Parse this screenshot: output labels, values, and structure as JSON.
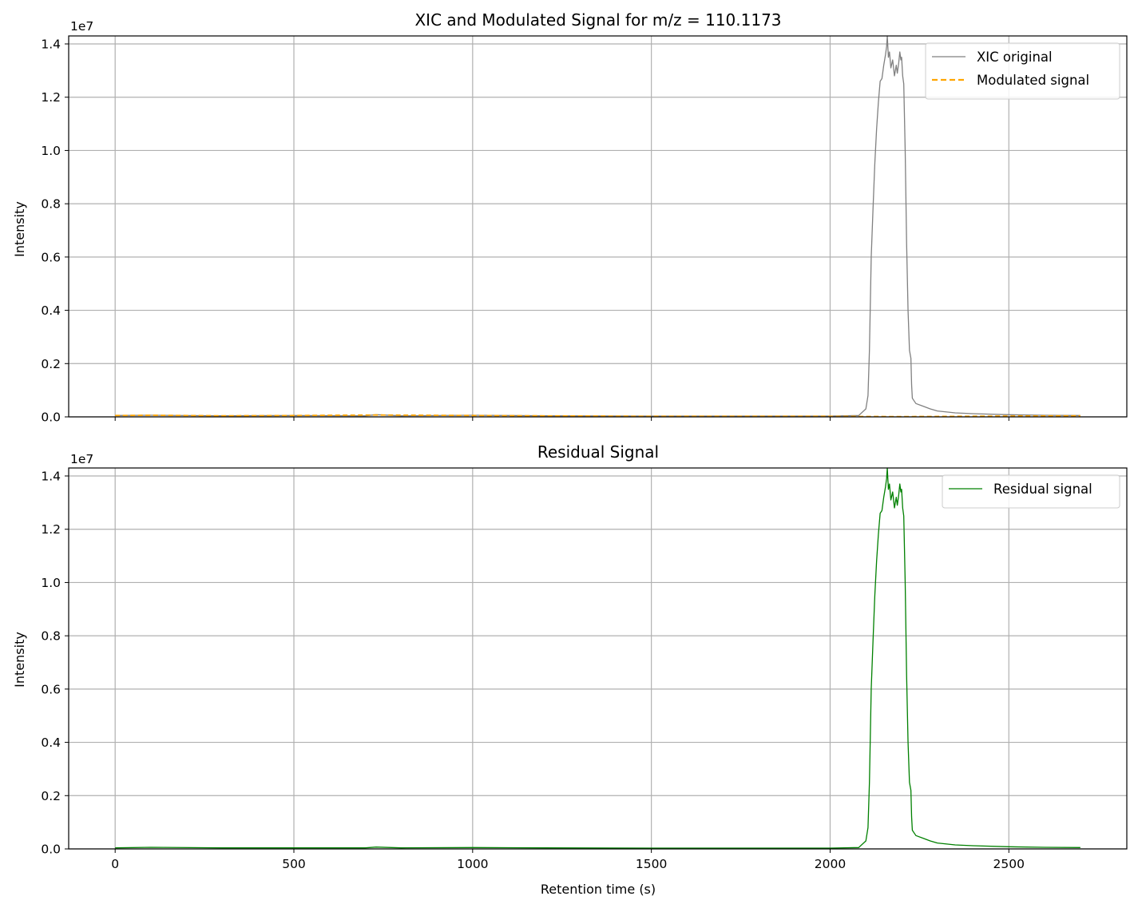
{
  "chart_data": [
    {
      "type": "line",
      "title": "XIC and Modulated Signal for m/z = 110.1173",
      "xlabel": "",
      "ylabel": "Intensity",
      "y_offset_label": "1e7",
      "xlim": [
        -130,
        2830
      ],
      "ylim": [
        0,
        1.43
      ],
      "x_ticks": [
        0,
        500,
        1000,
        1500,
        2000,
        2500
      ],
      "x_tick_labels": [],
      "y_ticks": [
        0.0,
        0.2,
        0.4,
        0.6,
        0.8,
        1.0,
        1.2,
        1.4
      ],
      "y_tick_labels": [
        "0.0",
        "0.2",
        "0.4",
        "0.6",
        "0.8",
        "1.0",
        "1.2",
        "1.4"
      ],
      "grid": true,
      "legend_position": "top-right",
      "series": [
        {
          "name": "XIC original",
          "color": "#808080",
          "style": "solid",
          "x": [
            0,
            100,
            300,
            500,
            700,
            730,
            800,
            1000,
            1200,
            1500,
            1800,
            2000,
            2080,
            2100,
            2106,
            2110,
            2115,
            2120,
            2125,
            2130,
            2135,
            2140,
            2145,
            2150,
            2155,
            2158,
            2160,
            2163,
            2166,
            2170,
            2175,
            2180,
            2185,
            2188,
            2192,
            2195,
            2198,
            2200,
            2203,
            2206,
            2210,
            2214,
            2218,
            2222,
            2226,
            2228,
            2230,
            2240,
            2260,
            2280,
            2300,
            2350,
            2400,
            2500,
            2600,
            2700
          ],
          "y": [
            0.005,
            0.006,
            0.004,
            0.005,
            0.004,
            0.008,
            0.004,
            0.006,
            0.004,
            0.003,
            0.003,
            0.003,
            0.005,
            0.03,
            0.08,
            0.25,
            0.6,
            0.78,
            0.95,
            1.08,
            1.18,
            1.26,
            1.27,
            1.32,
            1.36,
            1.39,
            1.43,
            1.35,
            1.37,
            1.31,
            1.34,
            1.28,
            1.32,
            1.29,
            1.33,
            1.37,
            1.34,
            1.35,
            1.28,
            1.25,
            1.0,
            0.65,
            0.4,
            0.25,
            0.22,
            0.12,
            0.07,
            0.05,
            0.04,
            0.03,
            0.022,
            0.015,
            0.012,
            0.008,
            0.006,
            0.005
          ]
        },
        {
          "name": "Modulated signal",
          "color": "#ffa500",
          "style": "dashed",
          "x": [
            0,
            100,
            300,
            500,
            730,
            1000,
            1500,
            2000,
            2200,
            2500,
            2700
          ],
          "y": [
            0.005,
            0.006,
            0.004,
            0.005,
            0.007,
            0.005,
            0.002,
            0.002,
            0.001,
            0.003,
            0.004
          ]
        }
      ]
    },
    {
      "type": "line",
      "title": "Residual Signal",
      "xlabel": "Retention time (s)",
      "ylabel": "Intensity",
      "y_offset_label": "1e7",
      "xlim": [
        -130,
        2830
      ],
      "ylim": [
        0,
        1.43
      ],
      "x_ticks": [
        0,
        500,
        1000,
        1500,
        2000,
        2500
      ],
      "x_tick_labels": [
        "0",
        "500",
        "1000",
        "1500",
        "2000",
        "2500"
      ],
      "y_ticks": [
        0.0,
        0.2,
        0.4,
        0.6,
        0.8,
        1.0,
        1.2,
        1.4
      ],
      "y_tick_labels": [
        "0.0",
        "0.2",
        "0.4",
        "0.6",
        "0.8",
        "1.0",
        "1.2",
        "1.4"
      ],
      "grid": true,
      "legend_position": "top-right",
      "series": [
        {
          "name": "Residual signal",
          "color": "#008000",
          "style": "solid",
          "x": [
            0,
            100,
            300,
            500,
            700,
            730,
            800,
            1000,
            1200,
            1500,
            1800,
            2000,
            2080,
            2100,
            2106,
            2110,
            2115,
            2120,
            2125,
            2130,
            2135,
            2140,
            2145,
            2150,
            2155,
            2158,
            2160,
            2163,
            2166,
            2170,
            2175,
            2180,
            2185,
            2188,
            2192,
            2195,
            2198,
            2200,
            2203,
            2206,
            2210,
            2214,
            2218,
            2222,
            2226,
            2228,
            2230,
            2240,
            2260,
            2280,
            2300,
            2350,
            2400,
            2500,
            2600,
            2700
          ],
          "y": [
            0.004,
            0.006,
            0.004,
            0.004,
            0.004,
            0.007,
            0.004,
            0.005,
            0.004,
            0.003,
            0.003,
            0.003,
            0.005,
            0.03,
            0.08,
            0.25,
            0.6,
            0.78,
            0.95,
            1.08,
            1.18,
            1.26,
            1.27,
            1.32,
            1.36,
            1.39,
            1.43,
            1.35,
            1.37,
            1.31,
            1.34,
            1.28,
            1.32,
            1.29,
            1.33,
            1.37,
            1.34,
            1.35,
            1.28,
            1.25,
            1.0,
            0.65,
            0.4,
            0.25,
            0.22,
            0.12,
            0.07,
            0.05,
            0.04,
            0.03,
            0.022,
            0.015,
            0.012,
            0.008,
            0.006,
            0.005
          ]
        }
      ]
    }
  ]
}
